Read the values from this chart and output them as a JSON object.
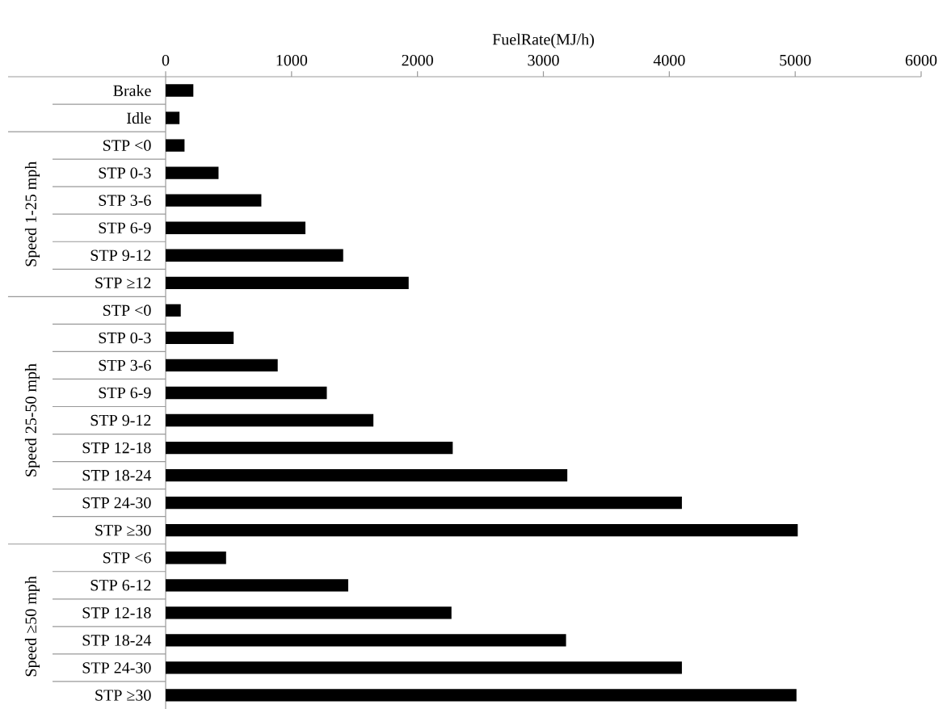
{
  "chart_data": {
    "type": "bar",
    "orientation": "horizontal",
    "xlabel": "FuelRate(MJ/h)",
    "categories": [
      "Brake",
      "Idle",
      "STP <0",
      "STP 0-3",
      "STP 3-6",
      "STP 6-9",
      "STP 9-12",
      "STP ≥12",
      "STP <0",
      "STP 0-3",
      "STP 3-6",
      "STP 6-9",
      "STP 9-12",
      "STP 12-18",
      "STP 18-24",
      "STP 24-30",
      "STP ≥30",
      "STP <6",
      "STP 6-12",
      "STP 12-18",
      "STP 18-24",
      "STP 24-30",
      "STP ≥30"
    ],
    "values": [
      220,
      110,
      150,
      420,
      760,
      1110,
      1410,
      1930,
      120,
      540,
      890,
      1280,
      1650,
      2280,
      3190,
      4100,
      5020,
      480,
      1450,
      2270,
      3180,
      4100,
      5010
    ],
    "color": "#000000",
    "xlim": [
      0,
      6000
    ],
    "xticks": [
      0,
      1000,
      2000,
      3000,
      4000,
      5000,
      6000
    ],
    "annotations": [
      "Speed 1-25 mph",
      "Speed 25-50 mph",
      "Speed ≥50 mph"
    ]
  }
}
